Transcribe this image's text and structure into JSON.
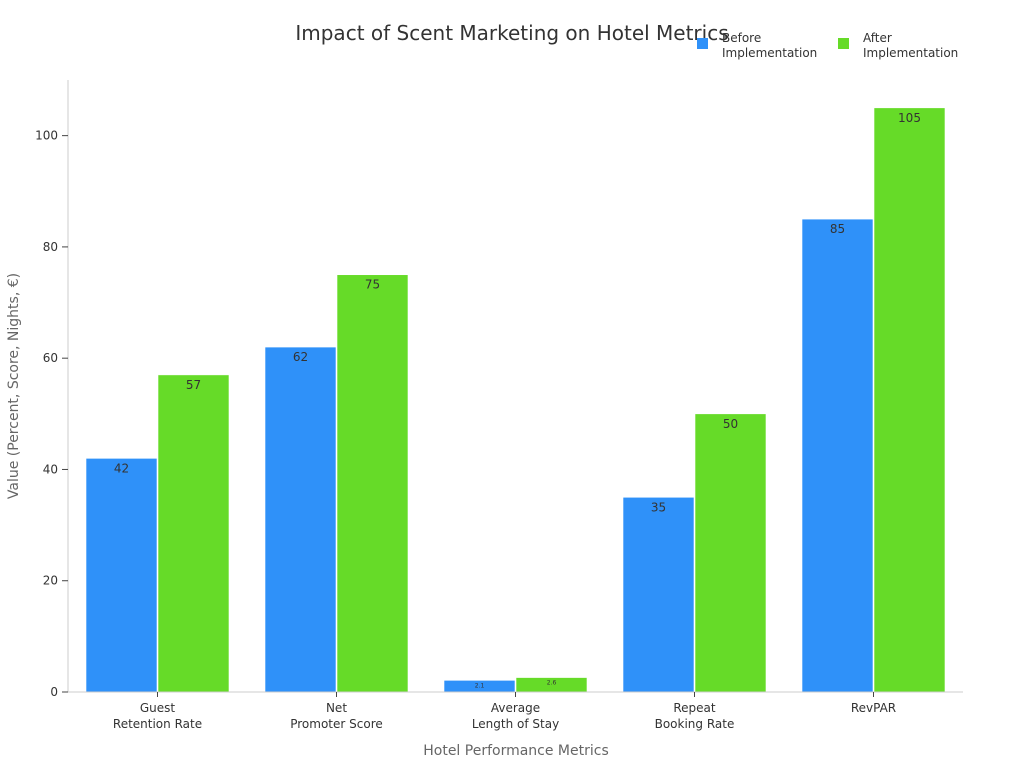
{
  "chart_data": {
    "type": "bar",
    "title": "Impact of Scent Marketing on Hotel Metrics",
    "xlabel": "Hotel Performance Metrics",
    "ylabel": "Value (Percent, Score, Nights, €)",
    "categories": [
      [
        "Guest",
        "Retention Rate"
      ],
      [
        "Net",
        "Promoter Score"
      ],
      [
        "Average",
        "Length of Stay"
      ],
      [
        "Repeat",
        "Booking Rate"
      ],
      [
        "RevPAR"
      ]
    ],
    "series": [
      {
        "name": [
          "Before",
          "Implementation"
        ],
        "color": "#2f91f9",
        "values": [
          42,
          62,
          2.1,
          35,
          85
        ],
        "labels": [
          "42",
          "62",
          "2.1",
          "35",
          "85"
        ]
      },
      {
        "name": [
          "After",
          "Implementation"
        ],
        "color": "#66db28",
        "values": [
          57,
          75,
          2.6,
          50,
          105
        ],
        "labels": [
          "57",
          "75",
          "2.6",
          "50",
          "105"
        ]
      }
    ],
    "ylim": [
      0,
      110
    ],
    "yticks": [
      0,
      20,
      40,
      60,
      80,
      100
    ],
    "grid": false,
    "legend_position": "top-right"
  }
}
